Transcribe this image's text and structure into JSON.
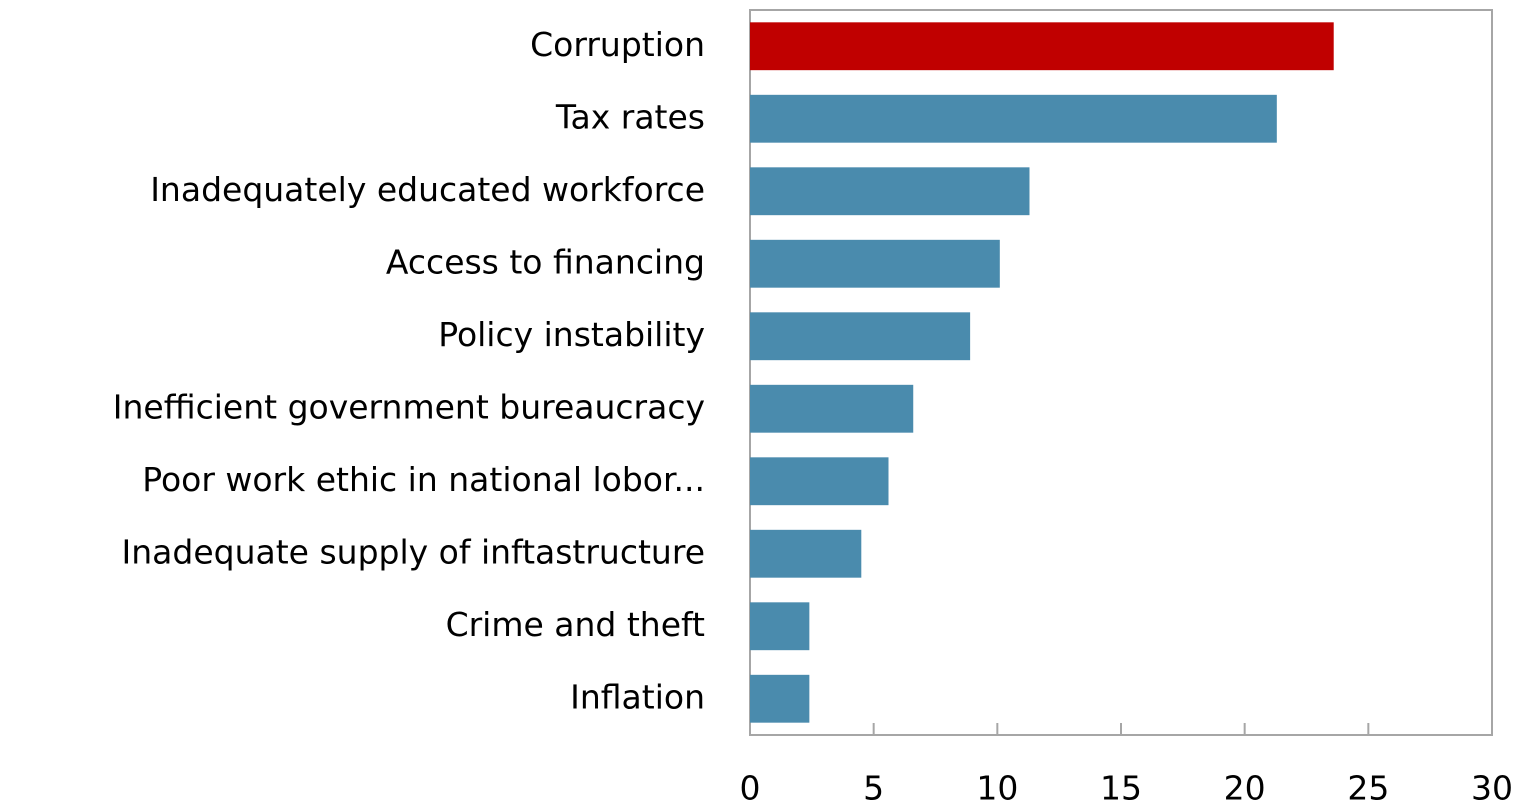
{
  "chart_data": {
    "type": "barh",
    "categories": [
      "Corruption",
      "Tax rates",
      "Inadequately educated workforce",
      "Access to financing",
      "Policy instability",
      "Inefficient government bureaucracy",
      "Poor work ethic in national lobor...",
      "Inadequate supply of inftastructure",
      "Crime and theft",
      "Inflation"
    ],
    "values": [
      23.6,
      21.3,
      11.3,
      10.1,
      8.9,
      6.6,
      5.6,
      4.5,
      2.4,
      2.4
    ],
    "colors": [
      "#c00000",
      "#4a8bad",
      "#4a8bad",
      "#4a8bad",
      "#4a8bad",
      "#4a8bad",
      "#4a8bad",
      "#4a8bad",
      "#4a8bad",
      "#4a8bad"
    ],
    "xlim": [
      0,
      30
    ],
    "xticks": [
      0,
      5,
      10,
      15,
      20,
      25,
      30
    ],
    "grid": false
  }
}
